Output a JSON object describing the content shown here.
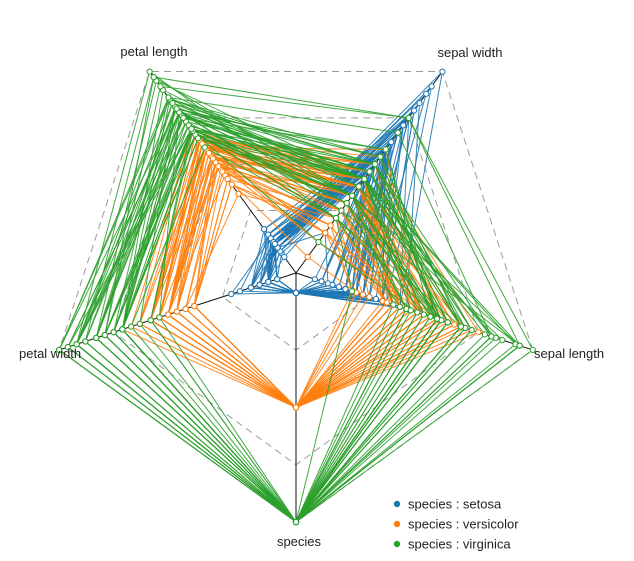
{
  "chart_data": {
    "type": "radar-parallel",
    "axes": [
      "sepal length",
      "sepal width",
      "petal length",
      "petal width",
      "species"
    ],
    "grid_levels": 4,
    "legend_position": "bottom-right",
    "legend_prefix": "species : ",
    "series": [
      {
        "name": "setosa",
        "color": "#1f77b4",
        "records": [
          [
            0.22,
            0.62,
            0.07,
            0.04,
            0
          ],
          [
            0.17,
            0.42,
            0.07,
            0.04,
            0
          ],
          [
            0.11,
            0.5,
            0.05,
            0.04,
            0
          ],
          [
            0.08,
            0.46,
            0.08,
            0.04,
            0
          ],
          [
            0.19,
            0.67,
            0.07,
            0.04,
            0
          ],
          [
            0.31,
            0.79,
            0.12,
            0.12,
            0
          ],
          [
            0.08,
            0.58,
            0.07,
            0.08,
            0
          ],
          [
            0.19,
            0.58,
            0.08,
            0.04,
            0
          ],
          [
            0.03,
            0.38,
            0.07,
            0.04,
            0
          ],
          [
            0.17,
            0.46,
            0.08,
            0.0,
            0
          ],
          [
            0.31,
            0.71,
            0.08,
            0.04,
            0
          ],
          [
            0.14,
            0.58,
            0.1,
            0.04,
            0
          ],
          [
            0.14,
            0.42,
            0.07,
            0.0,
            0
          ],
          [
            0.0,
            0.42,
            0.02,
            0.0,
            0
          ],
          [
            0.42,
            0.83,
            0.03,
            0.04,
            0
          ],
          [
            0.39,
            1.0,
            0.08,
            0.12,
            0
          ],
          [
            0.31,
            0.79,
            0.05,
            0.12,
            0
          ],
          [
            0.22,
            0.62,
            0.07,
            0.08,
            0
          ],
          [
            0.39,
            0.75,
            0.12,
            0.08,
            0
          ],
          [
            0.22,
            0.75,
            0.08,
            0.08,
            0
          ],
          [
            0.31,
            0.58,
            0.12,
            0.04,
            0
          ],
          [
            0.22,
            0.71,
            0.08,
            0.12,
            0
          ],
          [
            0.08,
            0.67,
            0.0,
            0.04,
            0
          ],
          [
            0.22,
            0.54,
            0.12,
            0.17,
            0
          ],
          [
            0.14,
            0.58,
            0.15,
            0.04,
            0
          ],
          [
            0.19,
            0.42,
            0.1,
            0.04,
            0
          ],
          [
            0.19,
            0.58,
            0.1,
            0.12,
            0
          ],
          [
            0.25,
            0.62,
            0.08,
            0.04,
            0
          ],
          [
            0.25,
            0.58,
            0.07,
            0.04,
            0
          ],
          [
            0.11,
            0.5,
            0.1,
            0.04,
            0
          ],
          [
            0.14,
            0.46,
            0.1,
            0.04,
            0
          ],
          [
            0.31,
            0.58,
            0.08,
            0.12,
            0
          ],
          [
            0.25,
            0.88,
            0.08,
            0.0,
            0
          ],
          [
            0.33,
            0.92,
            0.07,
            0.04,
            0
          ],
          [
            0.17,
            0.46,
            0.08,
            0.04,
            0
          ],
          [
            0.19,
            0.5,
            0.03,
            0.04,
            0
          ],
          [
            0.33,
            0.62,
            0.05,
            0.04,
            0
          ],
          [
            0.17,
            0.67,
            0.07,
            0.0,
            0
          ],
          [
            0.03,
            0.42,
            0.05,
            0.04,
            0
          ],
          [
            0.22,
            0.58,
            0.08,
            0.04,
            0
          ],
          [
            0.19,
            0.62,
            0.05,
            0.08,
            0
          ],
          [
            0.06,
            0.13,
            0.05,
            0.08,
            0
          ],
          [
            0.03,
            0.5,
            0.05,
            0.04,
            0
          ],
          [
            0.19,
            0.62,
            0.1,
            0.21,
            0
          ],
          [
            0.22,
            0.75,
            0.15,
            0.12,
            0
          ],
          [
            0.14,
            0.42,
            0.07,
            0.08,
            0
          ],
          [
            0.22,
            0.75,
            0.1,
            0.04,
            0
          ],
          [
            0.08,
            0.5,
            0.07,
            0.04,
            0
          ],
          [
            0.28,
            0.71,
            0.08,
            0.04,
            0
          ],
          [
            0.19,
            0.54,
            0.07,
            0.04,
            0
          ]
        ]
      },
      {
        "name": "versicolor",
        "color": "#ff7f0e",
        "records": [
          [
            0.75,
            0.5,
            0.63,
            0.54,
            0.5
          ],
          [
            0.58,
            0.5,
            0.59,
            0.58,
            0.5
          ],
          [
            0.72,
            0.46,
            0.66,
            0.58,
            0.5
          ],
          [
            0.33,
            0.13,
            0.51,
            0.5,
            0.5
          ],
          [
            0.61,
            0.33,
            0.61,
            0.58,
            0.5
          ],
          [
            0.39,
            0.33,
            0.59,
            0.5,
            0.5
          ],
          [
            0.56,
            0.54,
            0.63,
            0.63,
            0.5
          ],
          [
            0.17,
            0.17,
            0.39,
            0.38,
            0.5
          ],
          [
            0.64,
            0.38,
            0.61,
            0.5,
            0.5
          ],
          [
            0.25,
            0.29,
            0.49,
            0.54,
            0.5
          ],
          [
            0.19,
            0.0,
            0.42,
            0.38,
            0.5
          ],
          [
            0.44,
            0.42,
            0.54,
            0.58,
            0.5
          ],
          [
            0.47,
            0.08,
            0.51,
            0.38,
            0.5
          ],
          [
            0.5,
            0.38,
            0.63,
            0.54,
            0.5
          ],
          [
            0.36,
            0.38,
            0.44,
            0.5,
            0.5
          ],
          [
            0.67,
            0.46,
            0.58,
            0.54,
            0.5
          ],
          [
            0.36,
            0.42,
            0.59,
            0.58,
            0.5
          ],
          [
            0.42,
            0.29,
            0.53,
            0.38,
            0.5
          ],
          [
            0.53,
            0.08,
            0.59,
            0.58,
            0.5
          ],
          [
            0.36,
            0.21,
            0.49,
            0.42,
            0.5
          ],
          [
            0.44,
            0.5,
            0.64,
            0.71,
            0.5
          ],
          [
            0.5,
            0.33,
            0.51,
            0.5,
            0.5
          ],
          [
            0.56,
            0.21,
            0.66,
            0.58,
            0.5
          ],
          [
            0.5,
            0.33,
            0.63,
            0.46,
            0.5
          ],
          [
            0.58,
            0.38,
            0.56,
            0.5,
            0.5
          ],
          [
            0.64,
            0.42,
            0.58,
            0.54,
            0.5
          ],
          [
            0.69,
            0.33,
            0.64,
            0.54,
            0.5
          ],
          [
            0.67,
            0.42,
            0.68,
            0.67,
            0.5
          ],
          [
            0.47,
            0.38,
            0.59,
            0.58,
            0.5
          ],
          [
            0.39,
            0.25,
            0.42,
            0.38,
            0.5
          ],
          [
            0.33,
            0.17,
            0.47,
            0.42,
            0.5
          ],
          [
            0.33,
            0.17,
            0.46,
            0.38,
            0.5
          ],
          [
            0.42,
            0.29,
            0.49,
            0.46,
            0.5
          ],
          [
            0.47,
            0.29,
            0.69,
            0.63,
            0.5
          ],
          [
            0.31,
            0.42,
            0.59,
            0.58,
            0.5
          ],
          [
            0.47,
            0.58,
            0.59,
            0.63,
            0.5
          ],
          [
            0.67,
            0.46,
            0.63,
            0.58,
            0.5
          ],
          [
            0.56,
            0.13,
            0.58,
            0.5,
            0.5
          ],
          [
            0.36,
            0.42,
            0.53,
            0.5,
            0.5
          ],
          [
            0.33,
            0.21,
            0.51,
            0.5,
            0.5
          ],
          [
            0.33,
            0.25,
            0.58,
            0.46,
            0.5
          ],
          [
            0.5,
            0.42,
            0.61,
            0.54,
            0.5
          ],
          [
            0.42,
            0.25,
            0.51,
            0.46,
            0.5
          ],
          [
            0.19,
            0.13,
            0.39,
            0.38,
            0.5
          ],
          [
            0.36,
            0.29,
            0.54,
            0.5,
            0.5
          ],
          [
            0.39,
            0.42,
            0.54,
            0.46,
            0.5
          ],
          [
            0.39,
            0.38,
            0.54,
            0.5,
            0.5
          ],
          [
            0.53,
            0.38,
            0.56,
            0.5,
            0.5
          ],
          [
            0.22,
            0.21,
            0.34,
            0.42,
            0.5
          ],
          [
            0.39,
            0.33,
            0.53,
            0.5,
            0.5
          ]
        ]
      },
      {
        "name": "virginica",
        "color": "#2ca02c",
        "records": [
          [
            0.56,
            0.54,
            0.85,
            1.0,
            1
          ],
          [
            0.42,
            0.29,
            0.69,
            0.75,
            1
          ],
          [
            0.78,
            0.42,
            0.83,
            0.83,
            1
          ],
          [
            0.56,
            0.38,
            0.78,
            0.71,
            1
          ],
          [
            0.61,
            0.42,
            0.81,
            0.88,
            1
          ],
          [
            0.92,
            0.42,
            0.95,
            0.83,
            1
          ],
          [
            0.17,
            0.21,
            0.59,
            0.67,
            1
          ],
          [
            0.83,
            0.38,
            0.9,
            0.71,
            1
          ],
          [
            0.67,
            0.21,
            0.81,
            0.71,
            1
          ],
          [
            0.81,
            0.67,
            0.86,
            1.0,
            1
          ],
          [
            0.61,
            0.5,
            0.69,
            0.79,
            1
          ],
          [
            0.58,
            0.29,
            0.73,
            0.75,
            1
          ],
          [
            0.69,
            0.42,
            0.76,
            0.83,
            1
          ],
          [
            0.39,
            0.21,
            0.68,
            0.79,
            1
          ],
          [
            0.42,
            0.33,
            0.69,
            0.96,
            1
          ],
          [
            0.58,
            0.5,
            0.73,
            0.92,
            1
          ],
          [
            0.61,
            0.42,
            0.76,
            0.71,
            1
          ],
          [
            0.94,
            0.75,
            0.97,
            0.88,
            1
          ],
          [
            0.94,
            0.25,
            1.0,
            0.92,
            1
          ],
          [
            0.47,
            0.08,
            0.68,
            0.58,
            1
          ],
          [
            0.72,
            0.5,
            0.8,
            0.92,
            1
          ],
          [
            0.36,
            0.33,
            0.66,
            0.79,
            1
          ],
          [
            0.94,
            0.33,
            0.97,
            0.79,
            1
          ],
          [
            0.56,
            0.29,
            0.66,
            0.71,
            1
          ],
          [
            0.67,
            0.54,
            0.8,
            0.83,
            1
          ],
          [
            0.81,
            0.5,
            0.85,
            0.71,
            1
          ],
          [
            0.53,
            0.33,
            0.64,
            0.71,
            1
          ],
          [
            0.5,
            0.42,
            0.66,
            0.71,
            1
          ],
          [
            0.58,
            0.33,
            0.78,
            0.83,
            1
          ],
          [
            0.81,
            0.42,
            0.81,
            0.63,
            1
          ],
          [
            0.86,
            0.33,
            0.86,
            0.75,
            1
          ],
          [
            1.0,
            0.75,
            0.92,
            0.79,
            1
          ],
          [
            0.58,
            0.33,
            0.78,
            0.88,
            1
          ],
          [
            0.56,
            0.33,
            0.69,
            0.58,
            1
          ],
          [
            0.5,
            0.25,
            0.78,
            0.54,
            1
          ],
          [
            0.94,
            0.42,
            0.86,
            0.92,
            1
          ],
          [
            0.56,
            0.58,
            0.78,
            0.96,
            1
          ],
          [
            0.58,
            0.46,
            0.76,
            0.71,
            1
          ],
          [
            0.47,
            0.42,
            0.64,
            0.71,
            1
          ],
          [
            0.72,
            0.46,
            0.75,
            0.83,
            1
          ],
          [
            0.67,
            0.46,
            0.78,
            0.96,
            1
          ],
          [
            0.72,
            0.46,
            0.69,
            0.92,
            1
          ],
          [
            0.42,
            0.29,
            0.69,
            0.75,
            1
          ],
          [
            0.69,
            0.5,
            0.83,
            0.92,
            1
          ],
          [
            0.67,
            0.54,
            0.8,
            1.0,
            1
          ],
          [
            0.67,
            0.42,
            0.71,
            0.92,
            1
          ],
          [
            0.56,
            0.21,
            0.68,
            0.75,
            1
          ],
          [
            0.61,
            0.42,
            0.71,
            0.79,
            1
          ],
          [
            0.53,
            0.58,
            0.75,
            0.92,
            1
          ],
          [
            0.44,
            0.42,
            0.69,
            0.71,
            1
          ]
        ]
      }
    ]
  }
}
